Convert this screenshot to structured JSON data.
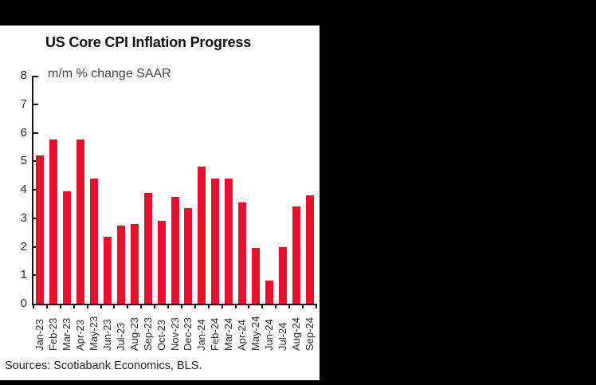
{
  "window": {
    "background_color": "#000000",
    "panel_color": "#ffffff"
  },
  "chart_data": {
    "type": "bar",
    "title": "US Core CPI Inflation Progress",
    "subtitle": "m/m % change SAAR",
    "categories": [
      "Jan-23",
      "Feb-23",
      "Mar-23",
      "Apr-23",
      "May-23",
      "Jun-23",
      "Jul-23",
      "Aug-23",
      "Sep-23",
      "Oct-23",
      "Nov-23",
      "Dec-23",
      "Jan-24",
      "Feb-24",
      "Mar-24",
      "Apr-24",
      "May-24",
      "Jun-24",
      "Jul-24",
      "Aug-24",
      "Sep-24"
    ],
    "values": [
      5.2,
      5.75,
      3.95,
      5.75,
      4.4,
      2.35,
      2.75,
      2.8,
      3.9,
      2.9,
      3.75,
      3.35,
      4.8,
      4.4,
      4.4,
      3.55,
      1.95,
      0.8,
      2.0,
      3.4,
      3.8
    ],
    "ylim": [
      0,
      8
    ],
    "yticks": [
      0,
      1,
      2,
      3,
      4,
      5,
      6,
      7,
      8
    ],
    "xlabel": "",
    "ylabel": "",
    "grid": false,
    "legend_position": "none",
    "bar_color": "#e8112d",
    "axis_color": "#161616"
  },
  "footer": {
    "source_note": "Sources: Scotiabank Economics, BLS."
  }
}
